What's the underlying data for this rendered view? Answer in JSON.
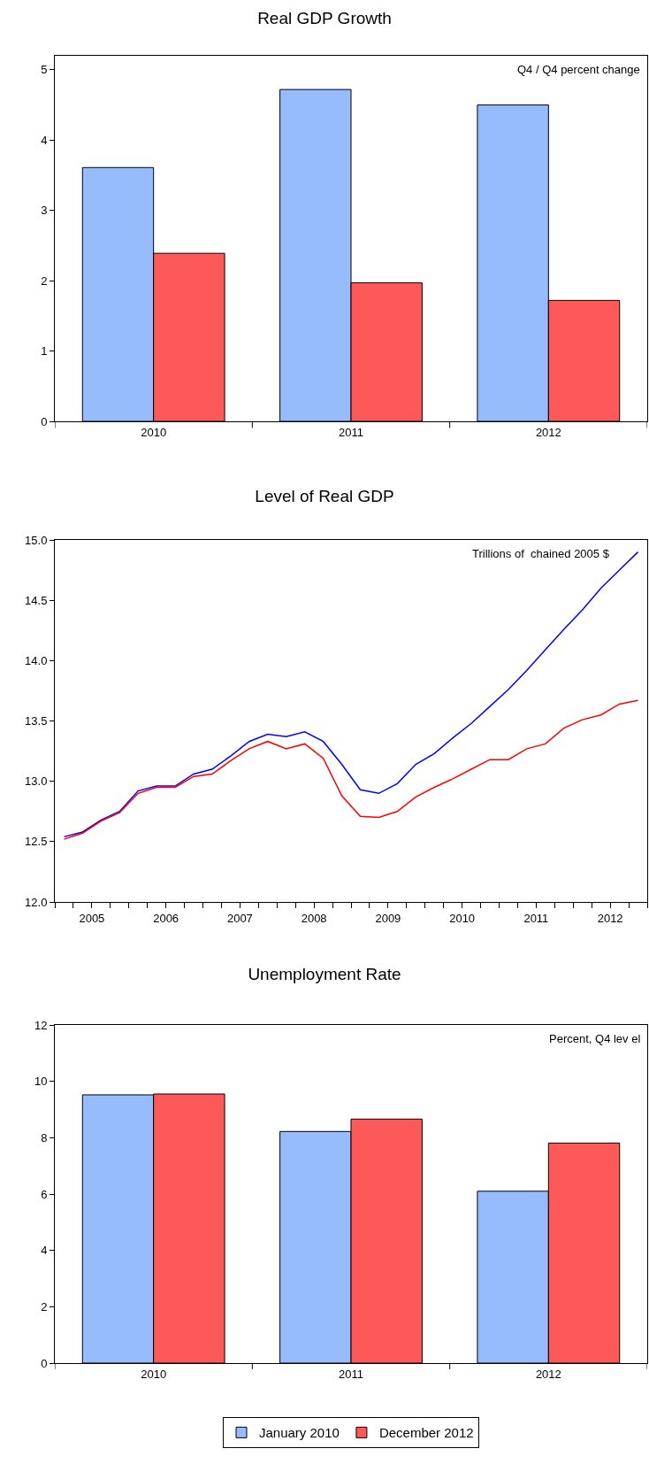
{
  "chart_data": [
    {
      "type": "bar",
      "title": "Real GDP Growth",
      "annotations": [
        "Q4 / Q4 percent change"
      ],
      "categories": [
        "2010",
        "2011",
        "2012"
      ],
      "series": [
        {
          "color": "#96bcfe",
          "values": [
            3.61,
            4.72,
            4.5
          ]
        },
        {
          "color": "#fe5959",
          "values": [
            2.39,
            1.97,
            1.72
          ]
        }
      ],
      "ylim": [
        0,
        5.2
      ],
      "yticks": [
        0,
        1,
        2,
        3,
        4,
        5
      ],
      "grid": false,
      "legend": false
    },
    {
      "type": "line",
      "title": "Level of Real GDP",
      "annotations": [
        "Trillions of  chained 2005 $"
      ],
      "x": [
        2005.125,
        2005.375,
        2005.625,
        2005.875,
        2006.125,
        2006.375,
        2006.625,
        2006.875,
        2007.125,
        2007.375,
        2007.625,
        2007.875,
        2008.125,
        2008.375,
        2008.625,
        2008.875,
        2009.125,
        2009.375,
        2009.625,
        2009.875,
        2010.125,
        2010.375,
        2010.625,
        2010.875,
        2011.125,
        2011.375,
        2011.625,
        2011.875,
        2012.125,
        2012.375,
        2012.625,
        2012.875
      ],
      "series": [
        {
          "color": "#0000ff",
          "values": [
            12.54,
            12.58,
            12.68,
            12.75,
            12.92,
            12.96,
            12.96,
            13.06,
            13.1,
            13.21,
            13.33,
            13.39,
            13.37,
            13.41,
            13.33,
            13.14,
            12.93,
            12.9,
            12.98,
            13.14,
            13.23,
            13.36,
            13.48,
            13.62,
            13.76,
            13.92,
            14.09,
            14.26,
            14.42,
            14.6,
            14.75,
            14.9
          ]
        },
        {
          "color": "#ff0000",
          "values": [
            12.52,
            12.57,
            12.67,
            12.74,
            12.9,
            12.95,
            12.95,
            13.04,
            13.06,
            13.17,
            13.27,
            13.33,
            13.27,
            13.31,
            13.19,
            12.88,
            12.71,
            12.7,
            12.75,
            12.87,
            12.95,
            13.02,
            13.1,
            13.18,
            13.18,
            13.27,
            13.31,
            13.44,
            13.51,
            13.55,
            13.64,
            13.67
          ]
        }
      ],
      "xlim": [
        2005,
        2013
      ],
      "xticks": [
        {
          "value": 2005,
          "label": null
        },
        {
          "value": 2005.25,
          "label": null
        },
        {
          "value": 2005.5,
          "label": "2005"
        },
        {
          "value": 2005.75,
          "label": null
        },
        {
          "value": 2006,
          "label": null
        },
        {
          "value": 2006.25,
          "label": null
        },
        {
          "value": 2006.5,
          "label": "2006"
        },
        {
          "value": 2006.75,
          "label": null
        },
        {
          "value": 2007,
          "label": null
        },
        {
          "value": 2007.25,
          "label": null
        },
        {
          "value": 2007.5,
          "label": "2007"
        },
        {
          "value": 2007.75,
          "label": null
        },
        {
          "value": 2008,
          "label": null
        },
        {
          "value": 2008.25,
          "label": null
        },
        {
          "value": 2008.5,
          "label": "2008"
        },
        {
          "value": 2008.75,
          "label": null
        },
        {
          "value": 2009,
          "label": null
        },
        {
          "value": 2009.25,
          "label": null
        },
        {
          "value": 2009.5,
          "label": "2009"
        },
        {
          "value": 2009.75,
          "label": null
        },
        {
          "value": 2010,
          "label": null
        },
        {
          "value": 2010.25,
          "label": null
        },
        {
          "value": 2010.5,
          "label": "2010"
        },
        {
          "value": 2010.75,
          "label": null
        },
        {
          "value": 2011,
          "label": null
        },
        {
          "value": 2011.25,
          "label": null
        },
        {
          "value": 2011.5,
          "label": "2011"
        },
        {
          "value": 2011.75,
          "label": null
        },
        {
          "value": 2012,
          "label": null
        },
        {
          "value": 2012.25,
          "label": null
        },
        {
          "value": 2012.5,
          "label": "2012"
        },
        {
          "value": 2012.75,
          "label": null
        },
        {
          "value": 2013,
          "label": null
        }
      ],
      "ylim": [
        12,
        15
      ],
      "yticks": [
        {
          "value": 12,
          "label": "12.0"
        },
        {
          "value": 12.5,
          "label": "12.5"
        },
        {
          "value": 13,
          "label": "13.0"
        },
        {
          "value": 13.5,
          "label": "13.5"
        },
        {
          "value": 14,
          "label": "14.0"
        },
        {
          "value": 14.5,
          "label": "14.5"
        },
        {
          "value": 15,
          "label": "15.0"
        }
      ],
      "grid": false,
      "legend": false,
      "marker": "none",
      "line_style": "solid"
    },
    {
      "type": "bar",
      "title": "Unemployment Rate",
      "annotations": [
        "Percent, Q4 lev el"
      ],
      "categories": [
        "2010",
        "2011",
        "2012"
      ],
      "series": [
        {
          "name": "January 2010",
          "color": "#96bcfe",
          "values": [
            9.52,
            8.22,
            6.1
          ]
        },
        {
          "name": "December 2012",
          "color": "#fe5959",
          "values": [
            9.55,
            8.66,
            7.81
          ]
        }
      ],
      "ylim": [
        0,
        12
      ],
      "yticks": [
        0,
        2,
        4,
        6,
        8,
        10,
        12
      ],
      "grid": false,
      "legend": "bottom"
    }
  ]
}
